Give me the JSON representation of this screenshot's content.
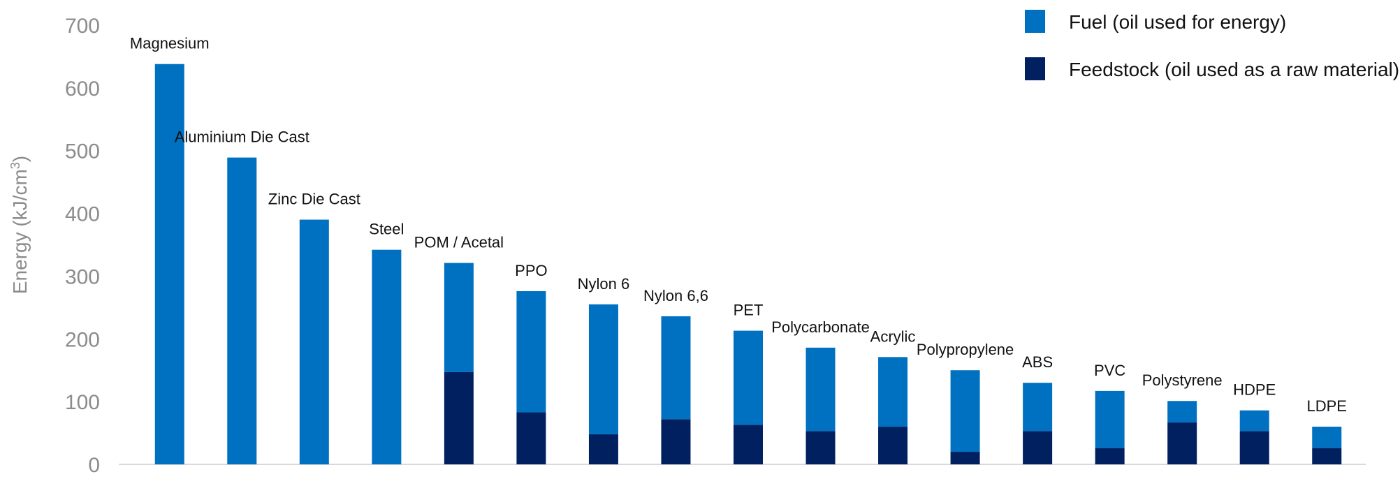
{
  "chart_data": {
    "type": "bar",
    "stacked": true,
    "title": "",
    "xlabel": "",
    "ylabel": "Energy (kJ/cm",
    "ylabel_superscript": "3",
    "ylabel_suffix": ")",
    "ylim": [
      0,
      700
    ],
    "yticks": [
      "0",
      "100",
      "200",
      "300",
      "400",
      "500",
      "600",
      "700"
    ],
    "grid": false,
    "legend_position": "top-right",
    "categories": [
      "Magnesium",
      "Aluminium Die Cast",
      "Zinc Die Cast",
      "Steel",
      "POM / Acetal",
      "PPO",
      "Nylon 6",
      "Nylon 6,6",
      "PET",
      "Polycarbonate",
      "Acrylic",
      "Polypropylene",
      "ABS",
      "PVC",
      "Polystyrene",
      "HDPE",
      "LDPE"
    ],
    "series": [
      {
        "name": "Feedstock (oil used as a raw material)",
        "color": "#002060",
        "values": [
          0,
          0,
          0,
          0,
          147,
          83,
          48,
          72,
          63,
          53,
          60,
          20,
          53,
          26,
          67,
          53,
          26
        ]
      },
      {
        "name": "Fuel (oil used for energy)",
        "color": "#0070C0",
        "values": [
          638,
          489,
          390,
          342,
          174,
          193,
          207,
          164,
          150,
          133,
          111,
          130,
          77,
          91,
          34,
          33,
          34
        ]
      }
    ],
    "legend": [
      {
        "name": "Fuel (oil used for energy)",
        "color": "#0070C0"
      },
      {
        "name": "Feedstock (oil used as a raw material)",
        "color": "#002060"
      }
    ]
  }
}
